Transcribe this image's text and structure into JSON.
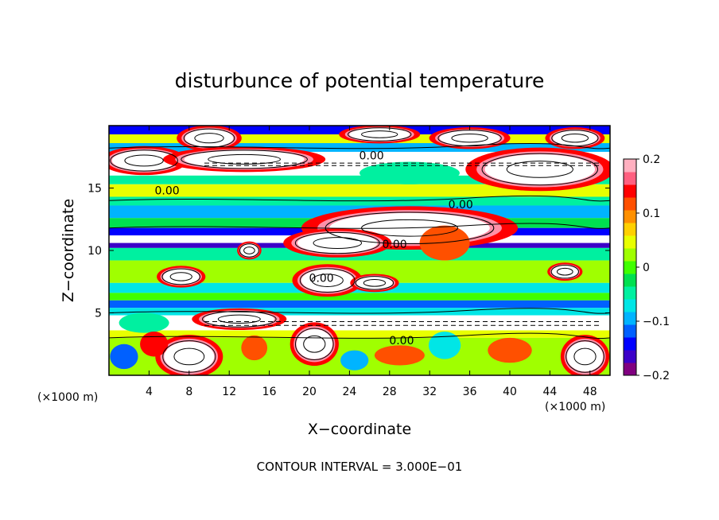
{
  "chart_data": {
    "type": "heatmap",
    "title": "disturbunce of potential temperature",
    "xlabel": "X−coordinate",
    "ylabel": "Z−coordinate",
    "x_unit_label": "(×1000 m)",
    "x_unit_label_right": "(×1000 m)",
    "xlim": [
      0,
      50
    ],
    "ylim": [
      0,
      20
    ],
    "x_ticks": [
      "4",
      "8",
      "12",
      "16",
      "20",
      "24",
      "28",
      "32",
      "36",
      "40",
      "44",
      "48"
    ],
    "x_tick_values": [
      4,
      8,
      12,
      16,
      20,
      24,
      28,
      32,
      36,
      40,
      44,
      48
    ],
    "y_ticks": [
      "5",
      "10",
      "15"
    ],
    "y_tick_values": [
      5,
      10,
      15
    ],
    "colorbar": {
      "range": [
        -0.2,
        0.2
      ],
      "tick_labels": [
        "0.2",
        "0.1",
        "0",
        "−0.1",
        "−0.2"
      ],
      "tick_values": [
        0.2,
        0.1,
        0,
        -0.1,
        -0.2
      ],
      "colors": [
        "#800080",
        "#3c00c8",
        "#0000ff",
        "#0060ff",
        "#00b4ff",
        "#00e6e6",
        "#00f0a0",
        "#00e050",
        "#40ff00",
        "#a0ff00",
        "#e8ff00",
        "#ffd000",
        "#ff9000",
        "#ff5000",
        "#ff0000",
        "#ff6080",
        "#ffb0c0"
      ]
    },
    "contour_interval_text": "CONTOUR INTERVAL = 3.000E−01",
    "contour_labels": [
      {
        "text": "0.00",
        "x": 26.2,
        "z": 17.6
      },
      {
        "text": "0.00",
        "x": 5.8,
        "z": 14.8
      },
      {
        "text": "0.00",
        "x": 35.1,
        "z": 13.7
      },
      {
        "text": "0.00",
        "x": 28.5,
        "z": 10.5
      },
      {
        "text": "0.00",
        "x": 21.2,
        "z": 7.8
      },
      {
        "text": "0.00",
        "x": 29.2,
        "z": 2.8
      }
    ],
    "bands": [
      {
        "z0": 19.3,
        "z1": 20,
        "value": -0.15
      },
      {
        "z0": 18.6,
        "z1": 19.3,
        "value": 0.05
      },
      {
        "z0": 17.9,
        "z1": 18.6,
        "value": -0.1
      },
      {
        "z0": 16.0,
        "z1": 17.9,
        "value": 0.25
      },
      {
        "z0": 15.3,
        "z1": 16.0,
        "value": -0.05
      },
      {
        "z0": 14.3,
        "z1": 15.3,
        "value": 0.04
      },
      {
        "z0": 13.6,
        "z1": 14.3,
        "value": -0.04
      },
      {
        "z0": 12.6,
        "z1": 13.6,
        "value": -0.1
      },
      {
        "z0": 11.8,
        "z1": 12.6,
        "value": -0.02
      },
      {
        "z0": 11.2,
        "z1": 11.8,
        "value": -0.14
      },
      {
        "z0": 10.6,
        "z1": 11.2,
        "value": 0.25
      },
      {
        "z0": 10.2,
        "z1": 10.6,
        "value": -0.16
      },
      {
        "z0": 9.2,
        "z1": 10.2,
        "value": -0.04
      },
      {
        "z0": 7.4,
        "z1": 9.2,
        "value": 0.03
      },
      {
        "z0": 6.6,
        "z1": 7.4,
        "value": -0.06
      },
      {
        "z0": 6.0,
        "z1": 6.6,
        "value": 0.0
      },
      {
        "z0": 5.4,
        "z1": 6.0,
        "value": -0.12
      },
      {
        "z0": 4.8,
        "z1": 5.4,
        "value": -0.06
      },
      {
        "z0": 3.6,
        "z1": 4.8,
        "value": 0.25
      },
      {
        "z0": 3.0,
        "z1": 3.6,
        "value": 0.05
      },
      {
        "z0": 0.0,
        "z1": 3.0,
        "value": 0.03
      }
    ],
    "blobs": [
      {
        "x": 3.5,
        "z": 17.2,
        "rx": 3.2,
        "rz": 0.8,
        "value": 0.25
      },
      {
        "x": 10,
        "z": 19.0,
        "rx": 2.4,
        "rz": 0.7,
        "value": 0.25
      },
      {
        "x": 13.5,
        "z": 17.3,
        "rx": 6,
        "rz": 0.7,
        "value": 0.25
      },
      {
        "x": 27,
        "z": 19.3,
        "rx": 3,
        "rz": 0.5,
        "value": 0.25
      },
      {
        "x": 36,
        "z": 19.0,
        "rx": 3,
        "rz": 0.6,
        "value": 0.25
      },
      {
        "x": 43,
        "z": 16.5,
        "rx": 5.5,
        "rz": 1.2,
        "value": 0.25
      },
      {
        "x": 46.5,
        "z": 19.0,
        "rx": 2.2,
        "rz": 0.6,
        "value": 0.25
      },
      {
        "x": 30,
        "z": 16.2,
        "rx": 5,
        "rz": 0.9,
        "value": -0.05
      },
      {
        "x": 30,
        "z": 11.8,
        "rx": 8,
        "rz": 1.2,
        "value": 0.25
      },
      {
        "x": 33.5,
        "z": 10.6,
        "rx": 2.5,
        "rz": 1.4,
        "value": 0.12
      },
      {
        "x": 22.8,
        "z": 10.6,
        "rx": 4,
        "rz": 0.8,
        "value": 0.25
      },
      {
        "x": 14,
        "z": 10.0,
        "rx": 0.9,
        "rz": 0.5,
        "value": 0.25
      },
      {
        "x": 7.2,
        "z": 7.9,
        "rx": 1.8,
        "rz": 0.6,
        "value": 0.25
      },
      {
        "x": 21.8,
        "z": 7.6,
        "rx": 2.6,
        "rz": 0.9,
        "value": 0.25
      },
      {
        "x": 26.5,
        "z": 7.4,
        "rx": 1.8,
        "rz": 0.5,
        "value": 0.25
      },
      {
        "x": 45.5,
        "z": 8.3,
        "rx": 1.3,
        "rz": 0.5,
        "value": 0.25
      },
      {
        "x": 3.5,
        "z": 4.2,
        "rx": 2.5,
        "rz": 0.8,
        "value": -0.05
      },
      {
        "x": 13,
        "z": 4.5,
        "rx": 3.5,
        "rz": 0.6,
        "value": 0.25
      },
      {
        "x": 8,
        "z": 1.5,
        "rx": 2.5,
        "rz": 1.2,
        "value": 0.25
      },
      {
        "x": 20.5,
        "z": 2.5,
        "rx": 1.8,
        "rz": 1.2,
        "value": 0.25
      },
      {
        "x": 47.5,
        "z": 1.5,
        "rx": 1.8,
        "rz": 1.2,
        "value": 0.25
      },
      {
        "x": 4.5,
        "z": 2.5,
        "rx": 1.4,
        "rz": 1.0,
        "value": 0.15
      },
      {
        "x": 14.5,
        "z": 2.2,
        "rx": 1.3,
        "rz": 1.0,
        "value": 0.12
      },
      {
        "x": 29,
        "z": 1.6,
        "rx": 2.5,
        "rz": 0.8,
        "value": 0.12
      },
      {
        "x": 33.5,
        "z": 2.4,
        "rx": 1.6,
        "rz": 1.1,
        "value": -0.08
      },
      {
        "x": 40,
        "z": 2.0,
        "rx": 2.2,
        "rz": 1.0,
        "value": 0.12
      },
      {
        "x": 24.5,
        "z": 1.2,
        "rx": 1.4,
        "rz": 0.8,
        "value": -0.1
      },
      {
        "x": 1.5,
        "z": 1.5,
        "rx": 1.4,
        "rz": 1.0,
        "value": -0.12
      }
    ]
  }
}
